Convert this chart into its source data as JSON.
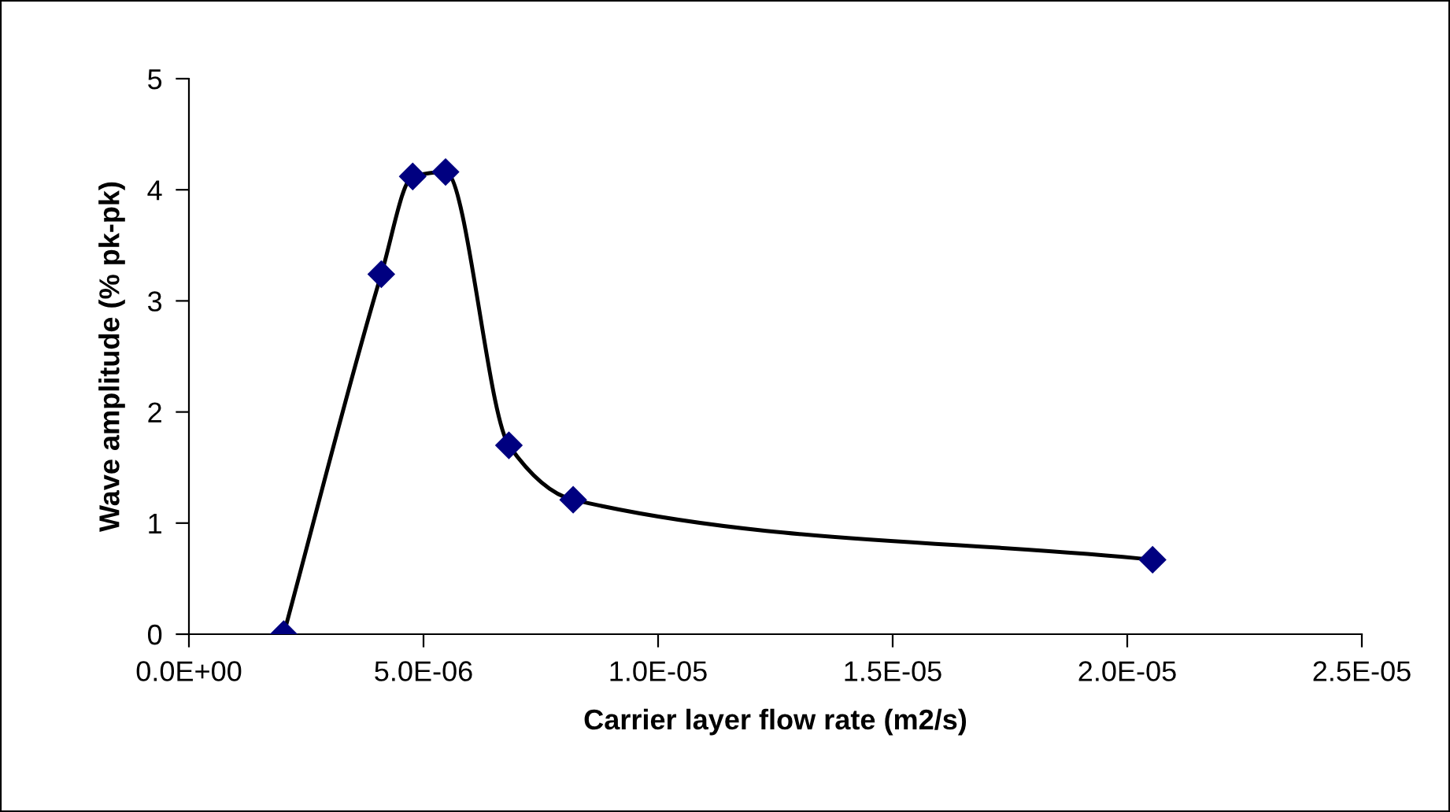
{
  "chart_data": {
    "type": "line",
    "xlabel": "Carrier layer flow rate (m2/s)",
    "ylabel": "Wave amplitude (% pk-pk)",
    "x": [
      2.02e-06,
      4.1e-06,
      4.77e-06,
      5.47e-06,
      6.82e-06,
      8.19e-06,
      2.054e-05
    ],
    "series": [
      {
        "color": "#000080",
        "values": [
          0,
          3.24,
          4.12,
          4.16,
          1.7,
          1.21,
          0.67
        ]
      }
    ],
    "marker": "diamond",
    "line_style": "solid",
    "grid": false,
    "legend": false,
    "xlim": [
      0,
      2.5e-05
    ],
    "ylim": [
      0,
      5
    ],
    "xticks": [
      {
        "value": 0,
        "label": "0.0E+00"
      },
      {
        "value": 5e-06,
        "label": "5.0E-06"
      },
      {
        "value": 1e-05,
        "label": "1.0E-05"
      },
      {
        "value": 1.5e-05,
        "label": "1.5E-05"
      },
      {
        "value": 2e-05,
        "label": "2.0E-05"
      },
      {
        "value": 2.5e-05,
        "label": "2.5E-05"
      }
    ],
    "yticks": [
      0,
      1,
      2,
      3,
      4,
      5
    ]
  }
}
